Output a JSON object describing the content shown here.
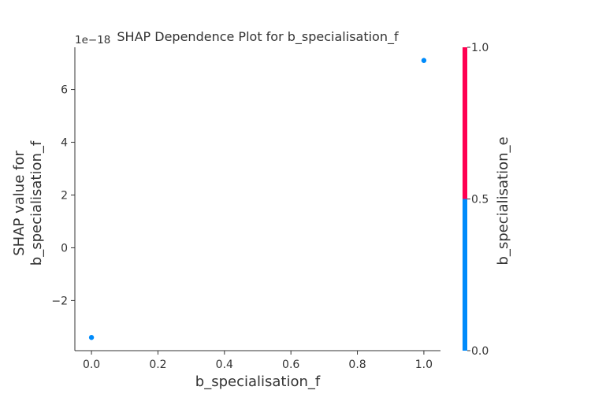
{
  "chart_data": {
    "type": "scatter",
    "title": "SHAP Dependence Plot for b_specialisation_f",
    "xlabel": "b_specialisation_f",
    "ylabel_lines": [
      "SHAP value for",
      "b_specialisation_f"
    ],
    "y_offset_text": "1e−18",
    "xlim": [
      -0.05,
      1.05
    ],
    "ylim": [
      -3.9,
      7.6
    ],
    "y_scale_exponent": -18,
    "xticks": [
      0.0,
      0.2,
      0.4,
      0.6,
      0.8,
      1.0
    ],
    "xtick_labels": [
      "0.0",
      "0.2",
      "0.4",
      "0.6",
      "0.8",
      "1.0"
    ],
    "yticks": [
      -2,
      0,
      2,
      4,
      6
    ],
    "ytick_labels": [
      "−2",
      "0",
      "2",
      "4",
      "6"
    ],
    "points": [
      {
        "x": 0.0,
        "y": -3.4,
        "color_value": 0.0
      },
      {
        "x": 1.0,
        "y": 7.1,
        "color_value": 0.0
      }
    ],
    "grid": false,
    "colorbar": {
      "label": "b_specialisation_e",
      "min": 0.0,
      "max": 1.0,
      "ticks": [
        0.0,
        0.5,
        1.0
      ],
      "tick_labels": [
        "0.0",
        "0.5",
        "1.0"
      ],
      "low_color": "#008bfb",
      "high_color": "#ff0051"
    }
  }
}
